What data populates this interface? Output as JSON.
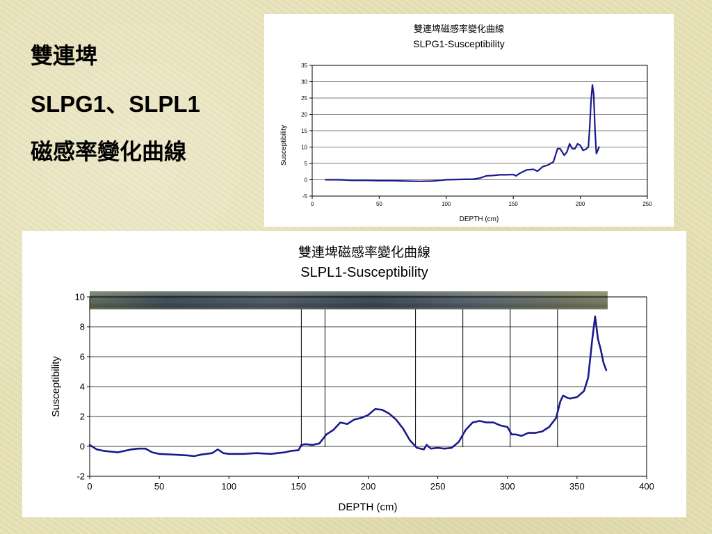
{
  "slide": {
    "title_line1": "雙連埤",
    "title_line2": "SLPG1、SLPL1",
    "title_line3": "磁感率變化曲線"
  },
  "colors": {
    "background": "#e7e1b6",
    "line": "#1a1a8c",
    "grid": "#000000"
  },
  "chart_data": [
    {
      "type": "line",
      "title": "雙連埤磁感率變化曲線",
      "subtitle": "SLPG1-Susceptibility",
      "xlabel": "DEPTH (cm)",
      "ylabel": "Susceptibility",
      "xlim": [
        0,
        250
      ],
      "ylim": [
        -5,
        35
      ],
      "xticks": [
        0,
        50,
        100,
        150,
        200,
        250
      ],
      "yticks": [
        -5,
        0,
        5,
        10,
        15,
        20,
        25,
        30,
        35
      ],
      "grid": true,
      "legend": "none",
      "series": [
        {
          "x": [
            10,
            20,
            30,
            40,
            50,
            60,
            70,
            80,
            90,
            100,
            110,
            120,
            125,
            130,
            135,
            140,
            145,
            150,
            152,
            155,
            160,
            165,
            168,
            172,
            176,
            180,
            183,
            185,
            188,
            190,
            192,
            194,
            196,
            198,
            200,
            202,
            204,
            206,
            207,
            208,
            209,
            210,
            211,
            212,
            213,
            214
          ],
          "y": [
            0,
            0,
            -0.2,
            -0.2,
            -0.3,
            -0.3,
            -0.4,
            -0.5,
            -0.4,
            0,
            0.1,
            0.2,
            0.5,
            1.2,
            1.3,
            1.5,
            1.5,
            1.6,
            1.2,
            2,
            3,
            3.2,
            2.6,
            4,
            4.5,
            5.5,
            9.5,
            9.5,
            7.5,
            8.5,
            11,
            9.5,
            9.5,
            11,
            10.5,
            9,
            9.3,
            10,
            16,
            24,
            29,
            26,
            15,
            8,
            9,
            10
          ]
        }
      ]
    },
    {
      "type": "line",
      "title": "雙連埤磁感率變化曲線",
      "subtitle": "SLPL1-Susceptibility",
      "xlabel": "DEPTH (cm)",
      "ylabel": "Susceptibility",
      "xlim": [
        0,
        400
      ],
      "ylim": [
        -2,
        10
      ],
      "xticks": [
        0,
        50,
        100,
        150,
        200,
        250,
        300,
        350,
        400
      ],
      "yticks": [
        -2,
        0,
        2,
        4,
        6,
        8,
        10
      ],
      "grid": true,
      "legend": "none",
      "section_boundaries": [
        152,
        169,
        234,
        268,
        302,
        336
      ],
      "series": [
        {
          "x": [
            0,
            5,
            10,
            20,
            30,
            35,
            40,
            45,
            50,
            60,
            70,
            75,
            80,
            88,
            92,
            96,
            100,
            110,
            120,
            130,
            140,
            145,
            150,
            152,
            155,
            160,
            165,
            170,
            175,
            180,
            185,
            190,
            195,
            200,
            205,
            210,
            215,
            220,
            225,
            230,
            235,
            240,
            242,
            245,
            250,
            255,
            260,
            265,
            270,
            275,
            280,
            285,
            290,
            295,
            300,
            303,
            306,
            310,
            315,
            320,
            325,
            330,
            335,
            338,
            340,
            343,
            345,
            350,
            355,
            358,
            361,
            363,
            365,
            367,
            369,
            371
          ],
          "y": [
            0.1,
            -0.2,
            -0.3,
            -0.4,
            -0.2,
            -0.15,
            -0.15,
            -0.4,
            -0.5,
            -0.55,
            -0.6,
            -0.65,
            -0.55,
            -0.45,
            -0.2,
            -0.45,
            -0.5,
            -0.5,
            -0.45,
            -0.5,
            -0.4,
            -0.3,
            -0.25,
            0.1,
            0.15,
            0.1,
            0.2,
            0.8,
            1.1,
            1.6,
            1.5,
            1.8,
            1.9,
            2.1,
            2.5,
            2.45,
            2.2,
            1.8,
            1.2,
            0.4,
            -0.1,
            -0.2,
            0.1,
            -0.15,
            -0.1,
            -0.15,
            -0.1,
            0.3,
            1.1,
            1.6,
            1.7,
            1.6,
            1.6,
            1.4,
            1.3,
            0.8,
            0.8,
            0.7,
            0.9,
            0.9,
            1.0,
            1.3,
            1.9,
            3.0,
            3.4,
            3.25,
            3.2,
            3.3,
            3.7,
            4.6,
            7.2,
            8.7,
            7.2,
            6.5,
            5.6,
            5.1
          ]
        }
      ]
    }
  ]
}
